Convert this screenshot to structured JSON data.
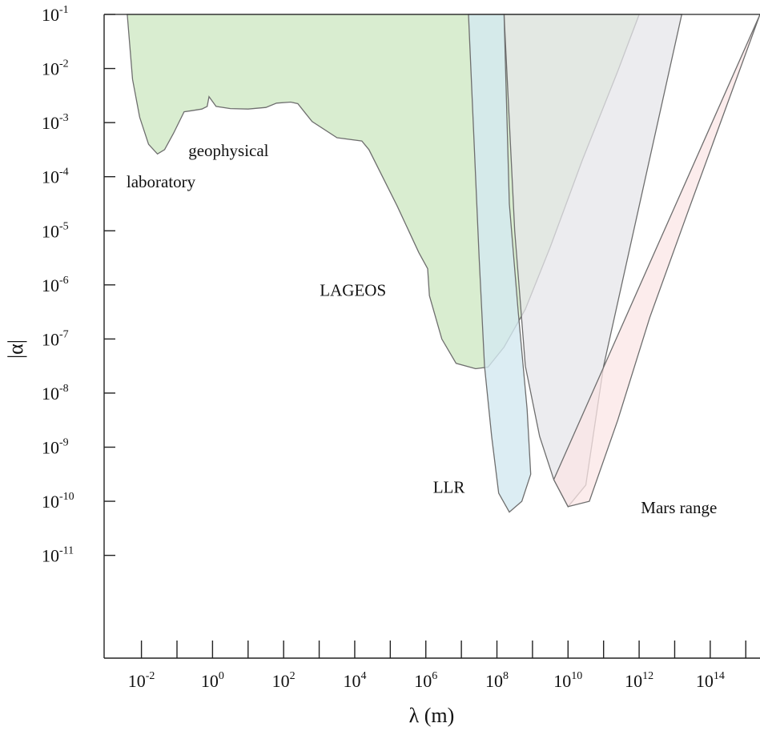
{
  "chart_data": {
    "type": "area",
    "xlabel": "λ (m)",
    "ylabel": "|α|",
    "xscale": "log",
    "yscale": "log",
    "x_tick_exponents": [
      -2,
      0,
      2,
      4,
      6,
      8,
      10,
      12,
      14
    ],
    "y_tick_exponents": [
      -1,
      -2,
      -3,
      -4,
      -5,
      -6,
      -7,
      -8,
      -9,
      -10,
      -11
    ],
    "xlim_log10": [
      -3.05,
      15.4
    ],
    "ylim_log10": [
      -12.9,
      -1
    ],
    "grid": false,
    "colors": {
      "laboratory-geophysical-lageos": "#d9edd0",
      "llr": "#d3e8f0",
      "gray-band": "#e6e6ea",
      "mars-range": "#fbe6e6",
      "outline": "#6e6e6e"
    },
    "series": [
      {
        "id": "laboratory-geophysical-lageos",
        "boundary_log10": [
          [
            -2.4,
            -1
          ],
          [
            -2.25,
            -2.2
          ],
          [
            -2.05,
            -2.9
          ],
          [
            -1.8,
            -3.4
          ],
          [
            -1.55,
            -3.58
          ],
          [
            -1.35,
            -3.5
          ],
          [
            -1.1,
            -3.2
          ],
          [
            -0.8,
            -2.8
          ],
          [
            -0.6,
            -2.78
          ],
          [
            -0.3,
            -2.75
          ],
          [
            -0.15,
            -2.7
          ],
          [
            -0.1,
            -2.52
          ],
          [
            0.1,
            -2.7
          ],
          [
            0.5,
            -2.74
          ],
          [
            1.0,
            -2.75
          ],
          [
            1.5,
            -2.72
          ],
          [
            1.8,
            -2.64
          ],
          [
            2.2,
            -2.62
          ],
          [
            2.4,
            -2.65
          ],
          [
            2.8,
            -2.98
          ],
          [
            3.5,
            -3.28
          ],
          [
            4.2,
            -3.34
          ],
          [
            4.4,
            -3.5
          ],
          [
            5.2,
            -4.55
          ],
          [
            5.8,
            -5.4
          ],
          [
            6.05,
            -5.7
          ],
          [
            6.1,
            -6.2
          ],
          [
            6.45,
            -7.0
          ],
          [
            6.85,
            -7.45
          ],
          [
            7.4,
            -7.55
          ],
          [
            7.75,
            -7.52
          ],
          [
            8.2,
            -7.15
          ],
          [
            8.8,
            -6.45
          ],
          [
            9.5,
            -5.3
          ],
          [
            10.4,
            -3.7
          ],
          [
            11.4,
            -2.05
          ],
          [
            12.0,
            -1
          ]
        ]
      },
      {
        "id": "gray-band",
        "boundary_log10": [
          [
            8.2,
            -1
          ],
          [
            8.5,
            -5.0
          ],
          [
            8.8,
            -7.5
          ],
          [
            9.2,
            -8.8
          ],
          [
            9.6,
            -9.6
          ],
          [
            10.0,
            -10.1
          ],
          [
            10.5,
            -9.7
          ],
          [
            11.0,
            -7.5
          ],
          [
            13.2,
            -1
          ]
        ]
      },
      {
        "id": "mars-range",
        "boundary_log10": [
          [
            9.6,
            -9.6
          ],
          [
            10.0,
            -10.1
          ],
          [
            10.6,
            -10.0
          ],
          [
            11.4,
            -8.5
          ],
          [
            12.3,
            -6.6
          ],
          [
            13.4,
            -4.6
          ],
          [
            14.4,
            -2.8
          ],
          [
            15.4,
            -1
          ]
        ]
      },
      {
        "id": "llr",
        "boundary_log10": [
          [
            7.2,
            -1
          ],
          [
            7.5,
            -5.5
          ],
          [
            7.65,
            -7.5
          ],
          [
            7.85,
            -8.8
          ],
          [
            8.05,
            -9.85
          ],
          [
            8.35,
            -10.2
          ],
          [
            8.7,
            -10.0
          ],
          [
            8.95,
            -9.5
          ],
          [
            8.85,
            -8.3
          ],
          [
            8.6,
            -6.5
          ],
          [
            8.35,
            -4.5
          ],
          [
            8.2,
            -1
          ]
        ]
      }
    ],
    "annotations": [
      {
        "name": "label-laboratory",
        "text": "laboratory",
        "x_log10": -1.45,
        "y_log10": -4.2
      },
      {
        "name": "label-geophysical",
        "text": "geophysical",
        "x_log10": 0.45,
        "y_log10": -3.62
      },
      {
        "name": "label-lageos",
        "text": "LAGEOS",
        "x_log10": 3.95,
        "y_log10": -6.2
      },
      {
        "name": "label-llr",
        "text": "LLR",
        "x_log10": 6.65,
        "y_log10": -9.84
      },
      {
        "name": "label-mars-range",
        "text": "Mars range",
        "x_log10": 13.12,
        "y_log10": -10.22
      }
    ]
  }
}
